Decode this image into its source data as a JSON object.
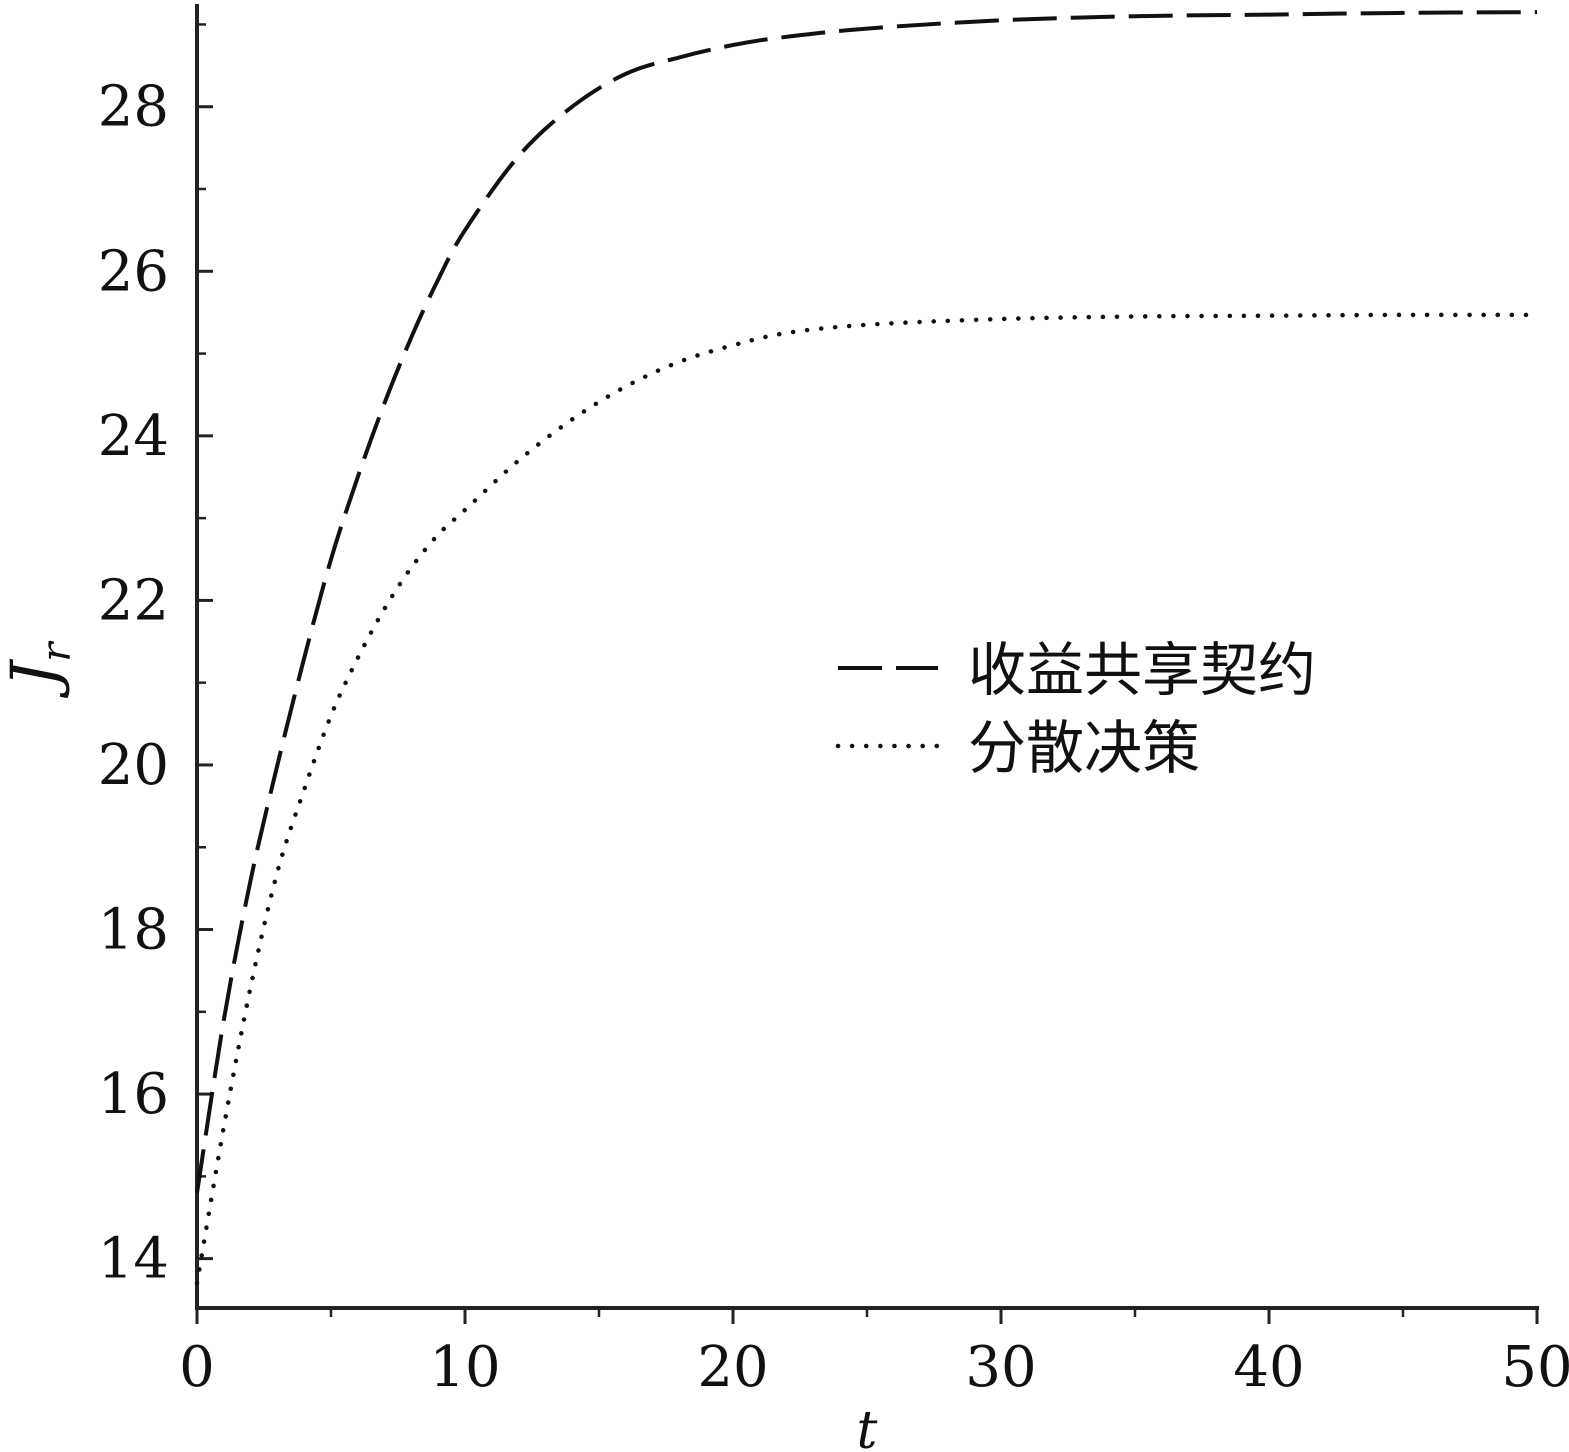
{
  "chart_data": {
    "type": "line",
    "title": "",
    "xlabel": "t",
    "ylabel": "J",
    "ylabel_subscript": "r",
    "xlim": [
      0,
      50
    ],
    "ylim": [
      13.4,
      29.2
    ],
    "xticks": [
      0,
      10,
      20,
      30,
      40,
      50
    ],
    "xtick_labels": [
      "0",
      "10",
      "20",
      "30",
      "40",
      "50"
    ],
    "yticks": [
      14,
      16,
      18,
      20,
      22,
      24,
      26,
      28
    ],
    "ytick_labels": [
      "14",
      "16",
      "18",
      "20",
      "22",
      "24",
      "26",
      "28"
    ],
    "x": [
      0,
      1,
      2,
      3,
      4,
      5,
      6,
      7,
      8,
      9,
      10,
      12,
      14,
      16,
      18,
      20,
      22,
      25,
      30,
      35,
      40,
      45,
      50
    ],
    "series": [
      {
        "name": "收益共享契约",
        "style": "dashed",
        "values": [
          14.8,
          16.9,
          18.6,
          20.0,
          21.3,
          22.5,
          23.5,
          24.4,
          25.2,
          25.9,
          26.5,
          27.4,
          28.0,
          28.4,
          28.6,
          28.75,
          28.85,
          28.95,
          29.05,
          29.1,
          29.12,
          29.14,
          29.15
        ]
      },
      {
        "name": "分散决策",
        "style": "dotted",
        "values": [
          13.7,
          15.6,
          17.3,
          18.7,
          19.7,
          20.6,
          21.3,
          21.9,
          22.4,
          22.8,
          23.1,
          23.7,
          24.2,
          24.6,
          24.9,
          25.1,
          25.25,
          25.35,
          25.42,
          25.45,
          25.46,
          25.47,
          25.47
        ]
      }
    ],
    "legend": {
      "placement": "center-right"
    },
    "grid": false
  }
}
